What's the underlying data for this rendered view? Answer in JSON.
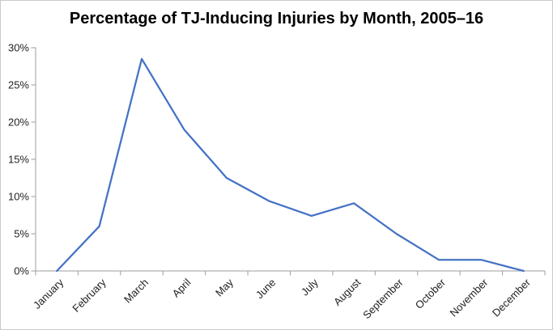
{
  "window": {
    "background": "#ffffff",
    "border_color": "#c9c9c9"
  },
  "chart_data": {
    "type": "line",
    "title": "Percentage of TJ-Inducing Injuries by Month, 2005–16",
    "categories": [
      "January",
      "February",
      "March",
      "April",
      "May",
      "June",
      "July",
      "August",
      "September",
      "October",
      "November",
      "December"
    ],
    "values": [
      0,
      6,
      28.5,
      19,
      12.5,
      9.4,
      7.4,
      9.1,
      5,
      1.5,
      1.5,
      0
    ],
    "unit": "%",
    "xlabel": "",
    "ylabel": "",
    "ylim": [
      0,
      30
    ],
    "y_tick_step": 5,
    "y_tick_labels": [
      "0%",
      "5%",
      "10%",
      "15%",
      "20%",
      "25%",
      "30%"
    ],
    "x_label_rotation_deg": 45,
    "grid": "off",
    "legend": "none",
    "colors": {
      "line": "#4472C4",
      "axis": "#9e9e9e",
      "labels": "#1f1f1f",
      "title": "#000000"
    }
  }
}
